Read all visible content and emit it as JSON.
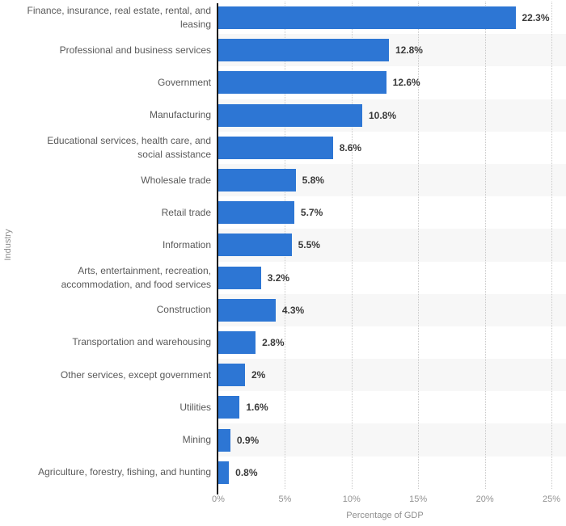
{
  "chart_data": {
    "type": "bar",
    "orientation": "horizontal",
    "title": "",
    "xlabel": "Percentage of GDP",
    "ylabel": "Industry",
    "categories": [
      "Finance, insurance, real estate, rental, and leasing",
      "Professional and business services",
      "Government",
      "Manufacturing",
      "Educational services, health care, and social assistance",
      "Wholesale trade",
      "Retail trade",
      "Information",
      "Arts, entertainment, recreation, accommodation, and food services",
      "Construction",
      "Transportation and warehousing",
      "Other services, except government",
      "Utilities",
      "Mining",
      "Agriculture, forestry, fishing, and hunting"
    ],
    "values": [
      22.3,
      12.8,
      12.6,
      10.8,
      8.6,
      5.8,
      5.7,
      5.5,
      3.2,
      4.3,
      2.8,
      2,
      1.6,
      0.9,
      0.8
    ],
    "value_labels": [
      "22.3%",
      "12.8%",
      "12.6%",
      "10.8%",
      "8.6%",
      "5.8%",
      "5.7%",
      "5.5%",
      "3.2%",
      "4.3%",
      "2.8%",
      "2%",
      "1.6%",
      "0.9%",
      "0.8%"
    ],
    "xlim": [
      0,
      25
    ],
    "x_ticks": [
      {
        "value": 0,
        "label": "0%"
      },
      {
        "value": 5,
        "label": "5%"
      },
      {
        "value": 10,
        "label": "10%"
      },
      {
        "value": 15,
        "label": "15%"
      },
      {
        "value": 20,
        "label": "20%"
      },
      {
        "value": 25,
        "label": "25%"
      }
    ],
    "grid": "dotted-vertical",
    "legend": "none",
    "colors": {
      "bar": "#2d76d4",
      "stripe": "#f7f7f7",
      "gridline": "#c9c9c9",
      "axis_line": "#1c1c1c",
      "category_text": "#595959",
      "value_text": "#3a3a3a",
      "tick_text": "#929292",
      "axis_title_text": "#8e8e8e"
    }
  }
}
